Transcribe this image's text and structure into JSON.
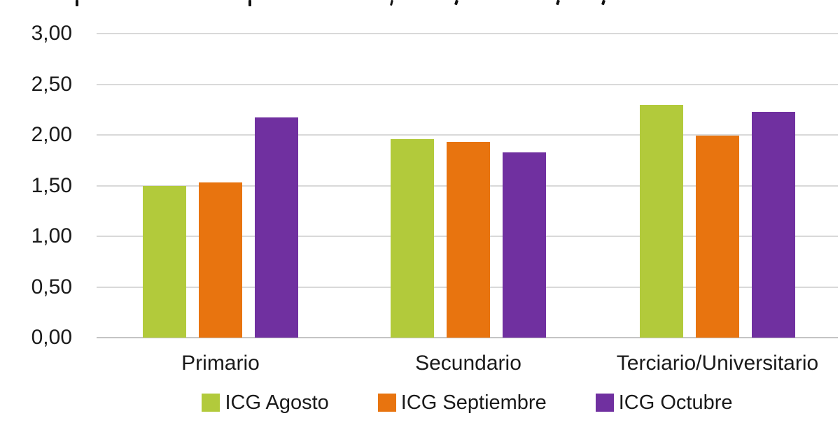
{
  "colors": {
    "background": "#ffffff",
    "gridline": "#d9d9d9",
    "axis_line": "#c4c4c4",
    "text": "#1a1a1a",
    "series_green": "#b2ca3b",
    "series_orange": "#e8740f",
    "series_purple": "#7030a0"
  },
  "chart_data": {
    "type": "bar",
    "title": "",
    "title_note_visible_pixels": "title cropped at top edge; only descender fragments visible",
    "categories": [
      "Primario",
      "Secundario",
      "Terciario/Universitario"
    ],
    "series": [
      {
        "name": "ICG Agosto",
        "color": "#b2ca3b",
        "values": [
          1.5,
          1.96,
          2.3
        ]
      },
      {
        "name": "ICG Septiembre",
        "color": "#e8740f",
        "values": [
          1.53,
          1.93,
          1.99
        ]
      },
      {
        "name": "ICG Octubre",
        "color": "#7030a0",
        "values": [
          2.17,
          1.83,
          2.23
        ]
      }
    ],
    "xlabel": "",
    "ylabel": "",
    "ylim": [
      0.0,
      3.0
    ],
    "ytick_step": 0.5,
    "ytick_labels": [
      "0,00",
      "0,50",
      "1,00",
      "1,50",
      "2,00",
      "2,50",
      "3,00"
    ],
    "grid": true,
    "legend_position": "bottom"
  }
}
